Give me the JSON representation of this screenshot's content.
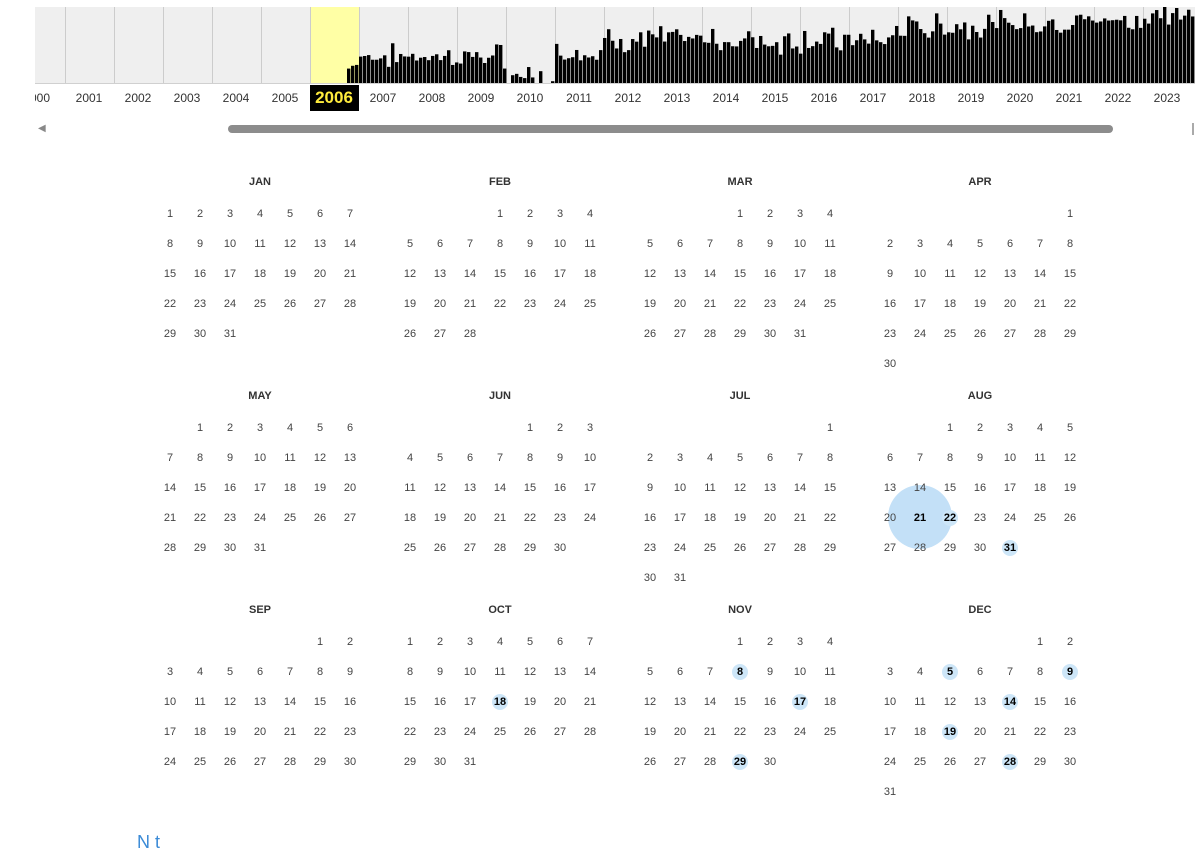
{
  "timeline": {
    "selected_year": "2006",
    "years": [
      "000",
      "2001",
      "2002",
      "2003",
      "2004",
      "2005",
      "2006",
      "2007",
      "2008",
      "2009",
      "2010",
      "2011",
      "2012",
      "2013",
      "2014",
      "2015",
      "2016",
      "2017",
      "2018",
      "2019",
      "2020",
      "2021",
      "2022",
      "2023"
    ],
    "colors": {
      "bar": "#000000",
      "selected_bg": "#ffffa5",
      "selected_label_bg": "#000000",
      "selected_label_fg": "#ffec3d"
    }
  },
  "calendar": {
    "year": 2006,
    "months": [
      {
        "name": "JAN",
        "start": 0,
        "days": 31,
        "captures": []
      },
      {
        "name": "FEB",
        "start": 3,
        "days": 28,
        "captures": []
      },
      {
        "name": "MAR",
        "start": 3,
        "days": 31,
        "captures": []
      },
      {
        "name": "APR",
        "start": 6,
        "days": 30,
        "captures": []
      },
      {
        "name": "MAY",
        "start": 1,
        "days": 31,
        "captures": []
      },
      {
        "name": "JUN",
        "start": 4,
        "days": 30,
        "captures": []
      },
      {
        "name": "JUL",
        "start": 6,
        "days": 31,
        "captures": []
      },
      {
        "name": "AUG",
        "start": 2,
        "days": 31,
        "captures": [
          21,
          22,
          31
        ],
        "highlight": 21
      },
      {
        "name": "SEP",
        "start": 5,
        "days": 30,
        "captures": []
      },
      {
        "name": "OCT",
        "start": 0,
        "days": 31,
        "captures": [
          18
        ]
      },
      {
        "name": "NOV",
        "start": 3,
        "days": 30,
        "captures": [
          8,
          17,
          29
        ]
      },
      {
        "name": "DEC",
        "start": 5,
        "days": 31,
        "captures": [
          5,
          9,
          14,
          19,
          28
        ]
      }
    ]
  },
  "footer": {
    "note_label": "N t"
  }
}
